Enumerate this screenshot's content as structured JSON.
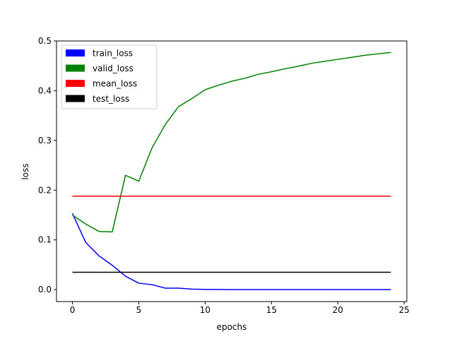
{
  "chart_data": {
    "type": "line",
    "title": "",
    "xlabel": "epochs",
    "ylabel": "loss",
    "xlim": [
      -1.2,
      25.2
    ],
    "ylim": [
      -0.024,
      0.5
    ],
    "xticks": [
      0,
      5,
      10,
      15,
      20,
      25
    ],
    "yticks": [
      0.0,
      0.1,
      0.2,
      0.3,
      0.4,
      0.5
    ],
    "xtick_labels": [
      "0",
      "5",
      "10",
      "15",
      "20",
      "25"
    ],
    "ytick_labels": [
      "0.0",
      "0.1",
      "0.2",
      "0.3",
      "0.4",
      "0.5"
    ],
    "grid": false,
    "legend_position": "top-left",
    "series": [
      {
        "name": "train_loss",
        "color": "#0000ff",
        "x": [
          0,
          1,
          2,
          3,
          4,
          5,
          6,
          7,
          8,
          9,
          10,
          11,
          12,
          13,
          14,
          15,
          16,
          17,
          18,
          19,
          20,
          21,
          22,
          23,
          24
        ],
        "y": [
          0.153,
          0.095,
          0.068,
          0.049,
          0.027,
          0.013,
          0.01,
          0.003,
          0.003,
          0.001,
          0.0005,
          0.0003,
          0.0002,
          0.0002,
          0.0001,
          0.0001,
          0.0001,
          0.0001,
          0.0001,
          0.0001,
          0.0001,
          0.0001,
          0.0001,
          0.0001,
          0.0001
        ]
      },
      {
        "name": "valid_loss",
        "color": "#008000",
        "x": [
          0,
          1,
          2,
          3,
          4,
          5,
          6,
          7,
          8,
          9,
          10,
          11,
          12,
          13,
          14,
          15,
          16,
          17,
          18,
          19,
          20,
          21,
          22,
          23,
          24
        ],
        "y": [
          0.15,
          0.132,
          0.117,
          0.116,
          0.23,
          0.218,
          0.285,
          0.332,
          0.368,
          0.384,
          0.402,
          0.411,
          0.419,
          0.425,
          0.433,
          0.438,
          0.444,
          0.449,
          0.455,
          0.459,
          0.463,
          0.467,
          0.471,
          0.474,
          0.477
        ]
      },
      {
        "name": "mean_loss",
        "color": "#ff0000",
        "x": [
          0,
          24
        ],
        "y": [
          0.188,
          0.188
        ]
      },
      {
        "name": "test_loss",
        "color": "#000000",
        "x": [
          0,
          24
        ],
        "y": [
          0.035,
          0.035
        ]
      }
    ]
  }
}
